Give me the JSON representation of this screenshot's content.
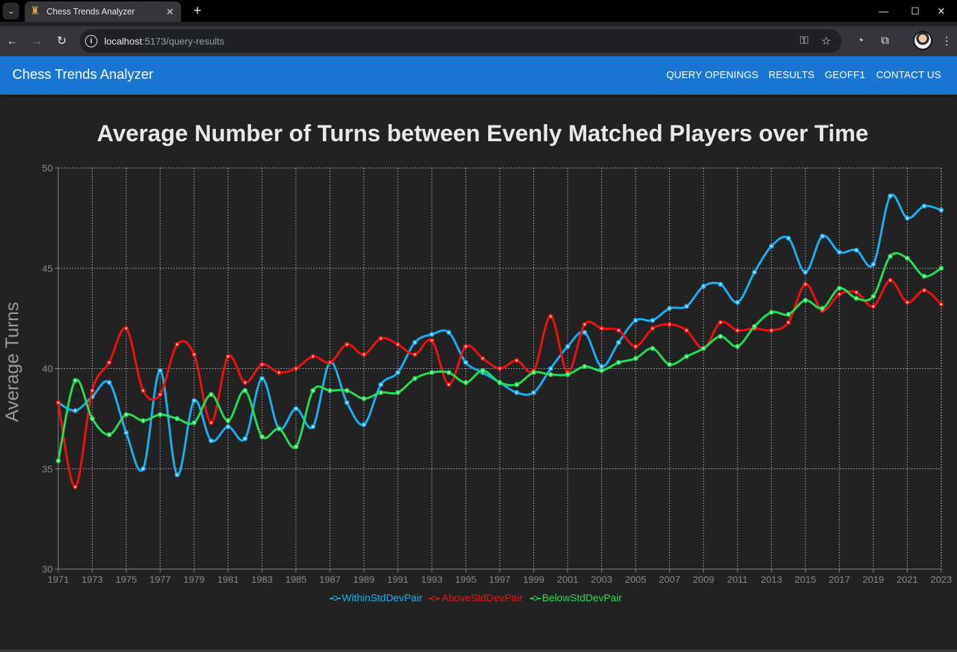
{
  "browser": {
    "tab_title": "Chess Trends Analyzer",
    "url_host": "localhost",
    "url_path": ":5173/query-results"
  },
  "appbar": {
    "title": "Chess Trends Analyzer",
    "nav": [
      "QUERY OPENINGS",
      "RESULTS",
      "GEOFF1",
      "CONTACT US"
    ]
  },
  "chart_data": {
    "type": "line",
    "title": "Average Number of Turns between Evenly Matched Players over Time",
    "xlabel": "",
    "ylabel": "Average Turns",
    "ylim": [
      30,
      50
    ],
    "yticks": [
      30,
      35,
      40,
      45,
      50
    ],
    "xlim": [
      1971,
      2023
    ],
    "xticks": [
      1971,
      1973,
      1975,
      1977,
      1979,
      1981,
      1983,
      1985,
      1987,
      1989,
      1991,
      1993,
      1995,
      1997,
      1999,
      2001,
      2003,
      2005,
      2007,
      2009,
      2011,
      2013,
      2015,
      2017,
      2019,
      2021,
      2023
    ],
    "grid": true,
    "legend_position": "bottom",
    "x": [
      1971,
      1972,
      1973,
      1974,
      1975,
      1976,
      1977,
      1978,
      1979,
      1980,
      1981,
      1982,
      1983,
      1984,
      1985,
      1986,
      1987,
      1988,
      1989,
      1990,
      1991,
      1992,
      1993,
      1994,
      1995,
      1996,
      1997,
      1998,
      1999,
      2000,
      2001,
      2002,
      2003,
      2004,
      2005,
      2006,
      2007,
      2008,
      2009,
      2010,
      2011,
      2012,
      2013,
      2014,
      2015,
      2016,
      2017,
      2018,
      2019,
      2020,
      2021,
      2022,
      2023
    ],
    "series": [
      {
        "name": "WithinStdDevPair",
        "color": "#1ab0f0",
        "values": [
          38.3,
          37.9,
          38.6,
          39.3,
          36.8,
          35.0,
          39.9,
          34.7,
          38.4,
          36.4,
          37.1,
          36.5,
          39.5,
          37.0,
          38.0,
          37.1,
          40.3,
          38.3,
          37.2,
          39.2,
          39.8,
          41.3,
          41.7,
          41.8,
          40.3,
          39.8,
          39.3,
          38.8,
          38.8,
          40.0,
          41.1,
          41.8,
          40.1,
          41.3,
          42.4,
          42.4,
          43.0,
          43.1,
          44.1,
          44.2,
          43.3,
          44.8,
          46.1,
          46.5,
          44.8,
          46.6,
          45.8,
          45.9,
          45.2,
          48.6,
          47.5,
          48.1,
          47.9
        ]
      },
      {
        "name": "AboveStdDevPair",
        "color": "#ee1111",
        "values": [
          38.3,
          34.1,
          38.9,
          40.3,
          42.0,
          38.9,
          38.7,
          41.2,
          40.7,
          37.3,
          40.6,
          39.3,
          40.2,
          39.8,
          40.0,
          40.6,
          40.3,
          41.2,
          40.7,
          41.5,
          41.2,
          40.7,
          41.4,
          39.2,
          41.1,
          40.5,
          40.0,
          40.4,
          39.9,
          42.6,
          39.8,
          42.2,
          42.0,
          41.9,
          41.1,
          42.0,
          42.2,
          41.9,
          41.0,
          42.3,
          41.9,
          42.0,
          41.9,
          42.3,
          44.2,
          42.9,
          43.7,
          43.8,
          43.1,
          44.4,
          43.3,
          43.9,
          43.2
        ]
      },
      {
        "name": "BelowStdDevPair",
        "color": "#22dd55",
        "values": [
          35.4,
          39.4,
          37.5,
          36.7,
          37.7,
          37.4,
          37.7,
          37.5,
          37.3,
          38.7,
          37.4,
          38.9,
          36.6,
          37.0,
          36.1,
          38.9,
          38.9,
          38.9,
          38.5,
          38.8,
          38.8,
          39.5,
          39.8,
          39.8,
          39.3,
          39.9,
          39.3,
          39.2,
          39.8,
          39.7,
          39.7,
          40.1,
          39.9,
          40.3,
          40.5,
          41.0,
          40.2,
          40.6,
          41.0,
          41.6,
          41.1,
          42.1,
          42.8,
          42.7,
          43.4,
          43.0,
          44.0,
          43.5,
          43.6,
          45.6,
          45.5,
          44.6,
          45.0
        ]
      }
    ]
  }
}
